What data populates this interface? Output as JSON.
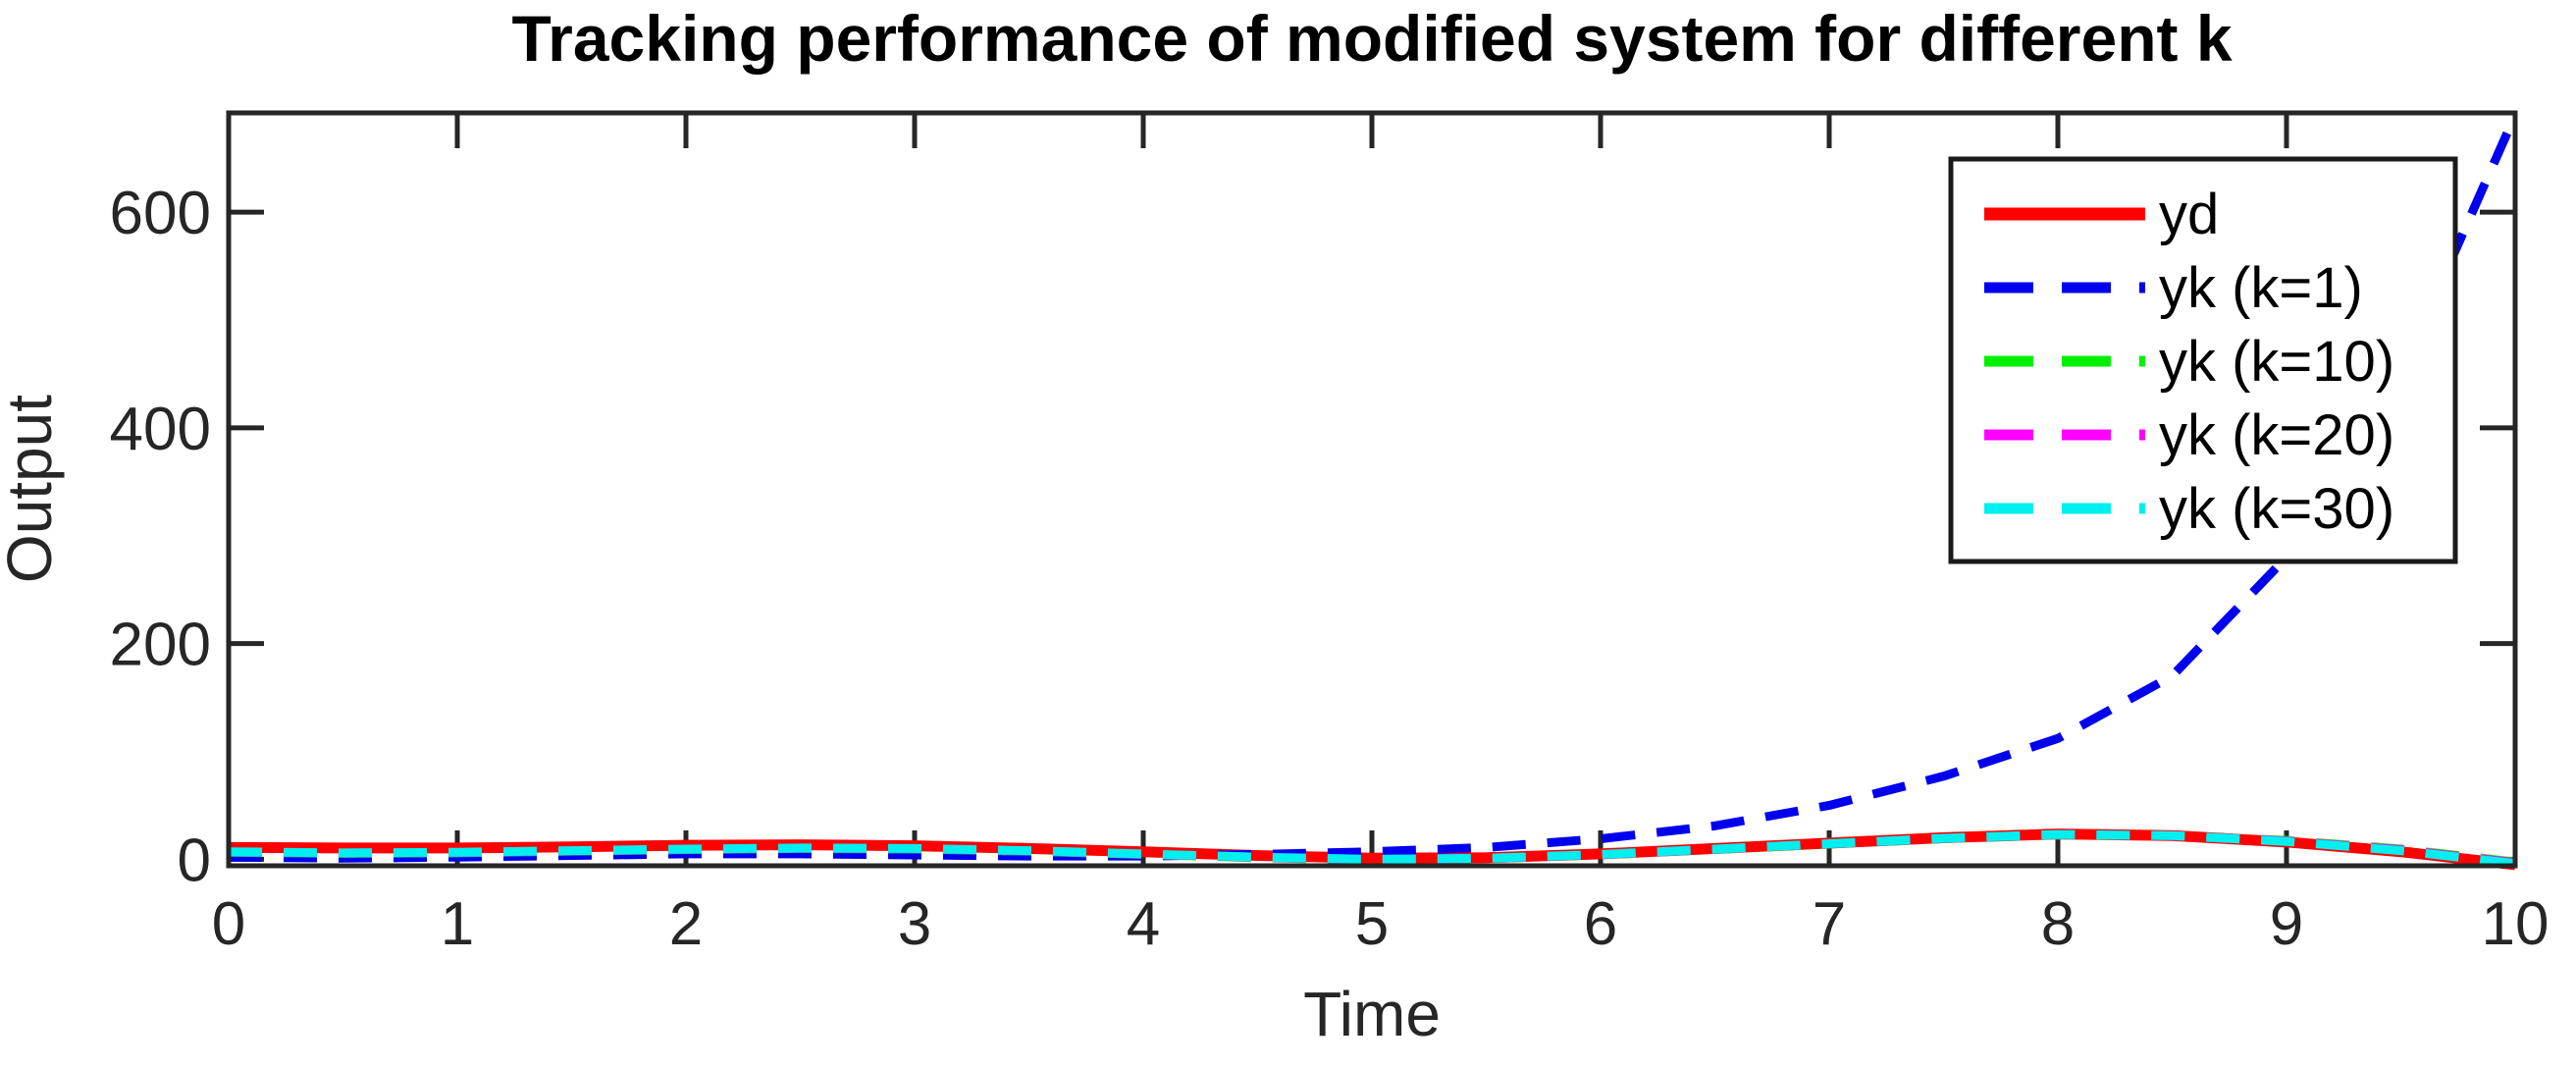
{
  "title": "Tracking performance of modified system for different k",
  "axes": {
    "xlabel": "Time",
    "ylabel": "Output",
    "x_ticks": [
      0,
      1,
      2,
      3,
      4,
      5,
      6,
      7,
      8,
      9,
      10
    ],
    "y_ticks": [
      0,
      200,
      400,
      600
    ],
    "xlim": [
      0,
      10
    ],
    "ylim": [
      -6,
      692
    ],
    "axis_color": "#262626",
    "background": "#ffffff"
  },
  "legend": {
    "position": "top-right",
    "border_color": "#1a1a1a",
    "background": "#ffffff",
    "entries": [
      {
        "label": "yd",
        "color": "#ff0000",
        "dash": false
      },
      {
        "label": "yk (k=1)",
        "color": "#0000ee",
        "dash": true
      },
      {
        "label": "yk (k=10)",
        "color": "#00f000",
        "dash": true
      },
      {
        "label": "yk (k=20)",
        "color": "#ff00ff",
        "dash": true
      },
      {
        "label": "yk (k=30)",
        "color": "#00f0f0",
        "dash": true
      }
    ]
  },
  "chart_data": {
    "type": "line",
    "title": "Tracking performance of modified system for different k",
    "xlabel": "Time",
    "ylabel": "Output",
    "xlim": [
      0,
      10
    ],
    "ylim": [
      -6,
      692
    ],
    "grid": false,
    "legend_position": "top-right",
    "x": [
      0,
      0.5,
      1,
      1.5,
      2,
      2.5,
      3,
      3.5,
      4,
      4.5,
      5,
      5.5,
      6,
      6.5,
      7,
      7.5,
      8,
      8.5,
      9,
      9.5,
      10
    ],
    "series": [
      {
        "name": "yd",
        "color": "#ff0000",
        "style": "solid",
        "width": 11,
        "values": [
          11,
          10.5,
          10.5,
          11.5,
          13,
          13.5,
          12.5,
          10,
          7,
          3.5,
          1,
          1.5,
          5,
          10,
          15,
          20,
          23.5,
          22,
          16,
          7,
          -5
        ]
      },
      {
        "name": "yk (k=1)",
        "color": "#0000ee",
        "style": "dashed",
        "width": 9,
        "values": [
          2,
          1,
          2,
          3.5,
          5,
          5,
          4,
          3,
          3,
          4.5,
          7,
          11,
          19,
          31,
          50,
          77,
          112,
          170,
          280,
          450,
          690
        ]
      },
      {
        "name": "yk (k=10)",
        "color": "#00f000",
        "style": "dashed",
        "width": 9,
        "values": [
          6.5,
          5.5,
          6,
          7.5,
          9,
          10,
          9.5,
          7.5,
          4.5,
          1.5,
          -0.5,
          0.5,
          4,
          9,
          14,
          19,
          22.5,
          21.8,
          17.5,
          9.5,
          -2.5
        ]
      },
      {
        "name": "yk (k=20)",
        "color": "#ff00ff",
        "style": "dashed",
        "width": 9,
        "values": [
          6.8,
          5.8,
          6.3,
          7.8,
          9.3,
          10.3,
          9.8,
          7.8,
          4.8,
          1.8,
          -0.2,
          0.8,
          4.3,
          9.3,
          14.3,
          19.3,
          22.8,
          21.9,
          17,
          8.8,
          -3.2
        ]
      },
      {
        "name": "yk (k=30)",
        "color": "#00f0f0",
        "style": "dashed",
        "width": 9,
        "values": [
          7,
          6,
          6.5,
          8,
          9.5,
          10.5,
          10,
          8,
          5,
          2,
          0,
          1,
          4.5,
          9.5,
          14.5,
          19.5,
          23,
          22,
          16.5,
          8,
          -4
        ]
      }
    ]
  }
}
